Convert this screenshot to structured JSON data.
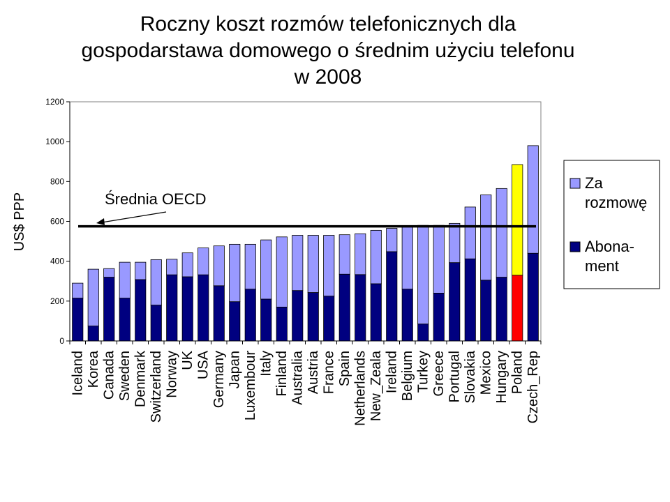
{
  "chart_data": {
    "type": "bar",
    "stacked": true,
    "title_lines": [
      "Roczny koszt rozmów telefonicznych dla",
      "gospodarstawa domowego o średnim użyciu telefonu",
      "w 2008"
    ],
    "ylabel": "US$ PPP",
    "xlabel": "",
    "ylim": [
      0,
      1200
    ],
    "yticks": [
      0,
      200,
      400,
      600,
      800,
      1000,
      1200
    ],
    "grid": false,
    "legend_position": "right",
    "categories": [
      "Iceland",
      "Korea",
      "Canada",
      "Sweden",
      "Denmark",
      "Switzerland",
      "Norway",
      "UK",
      "USA",
      "Germany",
      "Japan",
      "Luxembour",
      "Italy",
      "Finland",
      "Australia",
      "Austria",
      "France",
      "Spain",
      "Netherlands",
      "New_Zeala",
      "Ireland",
      "Belgium",
      "Turkey",
      "Greece",
      "Portugal",
      "Slovakia",
      "Mexico",
      "Hungary",
      "Poland",
      "Czech_Rep"
    ],
    "series": [
      {
        "name": "Abona-ment",
        "legend_lines": [
          "Abona-",
          "ment"
        ],
        "color": "#000080",
        "values": [
          215,
          75,
          320,
          215,
          308,
          180,
          332,
          322,
          332,
          277,
          197,
          260,
          210,
          170,
          253,
          243,
          225,
          335,
          333,
          287,
          448,
          260,
          85,
          240,
          393,
          412,
          305,
          320,
          330,
          440
        ]
      },
      {
        "name": "Za rozmowę",
        "legend_lines": [
          "Za",
          "rozmowę"
        ],
        "color": "#9999FF",
        "values": [
          75,
          285,
          43,
          180,
          87,
          228,
          78,
          120,
          135,
          200,
          288,
          225,
          297,
          352,
          277,
          287,
          305,
          198,
          205,
          268,
          117,
          318,
          495,
          340,
          197,
          260,
          428,
          445,
          555,
          540
        ]
      }
    ],
    "highlight": {
      "category": "Poland",
      "colors": {
        "Abona-ment": "#FF0000",
        "Za rozmowę": "#FFFF00"
      }
    },
    "reference_line": {
      "value": 575,
      "label": "Średnia OECD"
    }
  }
}
